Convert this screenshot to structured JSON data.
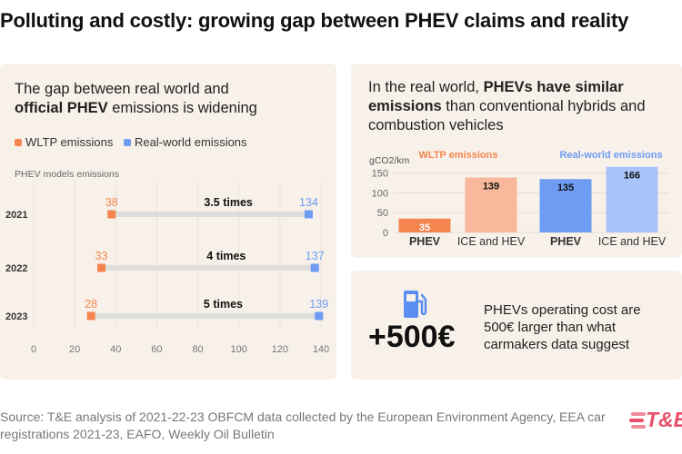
{
  "title": "Polluting and costly: growing gap between PHEV claims and reality",
  "colors": {
    "wltp": "#f5854f",
    "real": "#6e9cf2",
    "wltp_light": "#f9b89b",
    "real_light": "#a8c4f8",
    "connector": "#dddddd",
    "panel": "#f7f1ea"
  },
  "left_panel": {
    "heading_line1": "The gap between real world and",
    "heading_bold": "official PHEV",
    "heading_rest": " emissions is widening",
    "legend_wltp": "WLTP emissions",
    "legend_real": "Real-world emissions",
    "subtitle": "PHEV models emissions"
  },
  "right_top": {
    "heading_pre": "In the real world, ",
    "heading_bold1": "PHEVs have similar",
    "heading_bold2": "emissions",
    "heading_rest": " than conventional hybrids and combustion vehicles",
    "unit": "gCO2/km"
  },
  "right_bottom": {
    "big_value": "+500€",
    "icon": "fuel-pump-icon",
    "text": "PHEVs operating cost are 500€ larger than what carmakers data suggest"
  },
  "source": "Source: T&E analysis of 2021-22-23 OBFCM data collected by the European Environment Agency, EEA car registrations 2021-23, EAFO, Weekly Oil Bulletin",
  "logo": {
    "text": "T&E"
  },
  "chart_data": [
    {
      "type": "dumbbell",
      "title": "PHEV models emissions",
      "categories": [
        "2021",
        "2022",
        "2023"
      ],
      "series": [
        {
          "name": "WLTP emissions",
          "values": [
            38,
            33,
            28
          ]
        },
        {
          "name": "Real-world emissions",
          "values": [
            134,
            137,
            139
          ]
        }
      ],
      "annotations": [
        "3.5 times",
        "4 times",
        "5 times"
      ],
      "xlim": [
        0,
        140
      ],
      "xticks": [
        "0",
        "20",
        "40",
        "60",
        "80",
        "100",
        "120",
        "140"
      ],
      "grid": true
    },
    {
      "type": "bar",
      "ylabel": "gCO2/km",
      "ylim": [
        0,
        170
      ],
      "yticks": [
        "0",
        "50",
        "100",
        "150"
      ],
      "groups": [
        {
          "name": "WLTP emissions",
          "categories": [
            "PHEV",
            "ICE and HEV"
          ],
          "values": [
            35,
            139
          ]
        },
        {
          "name": "Real-world emissions",
          "categories": [
            "PHEV",
            "ICE and HEV"
          ],
          "values": [
            135,
            166
          ]
        }
      ]
    }
  ]
}
